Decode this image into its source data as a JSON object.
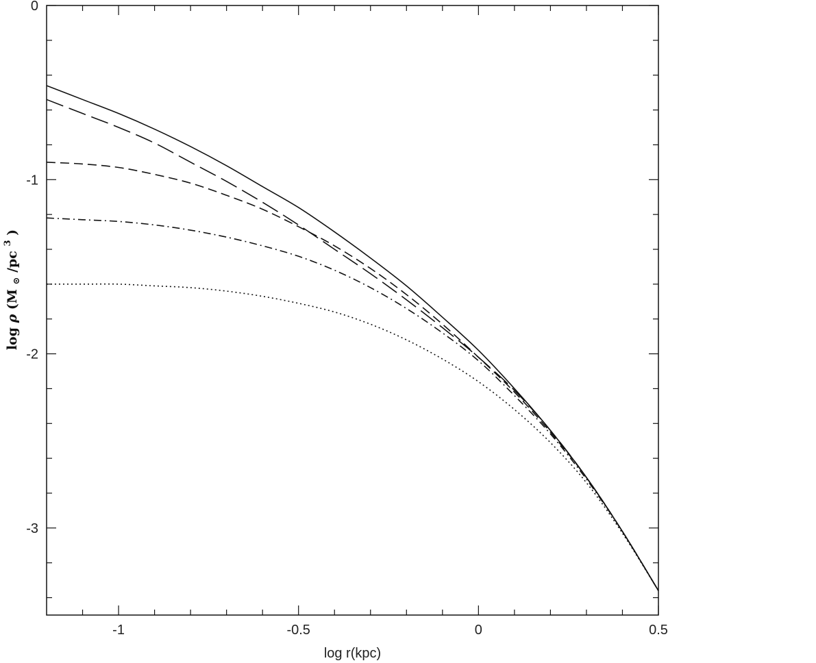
{
  "chart_data": {
    "type": "line",
    "title": "",
    "xlabel": "log r(kpc)",
    "ylabel": {
      "prefix": "log ",
      "symbol": "ρ",
      "unit_open": "  (M",
      "unit_sub": "⊙",
      "unit_mid": "/pc",
      "unit_sup": "3",
      "unit_close": ")"
    },
    "xlim": [
      -1.2,
      0.5
    ],
    "ylim": [
      -3.5,
      0
    ],
    "x_ticks": [
      -1,
      -0.5,
      0,
      0.5
    ],
    "x_tick_labels": [
      "-1",
      "-0.5",
      "0",
      "0.5"
    ],
    "x_minor_step": 0.1,
    "y_ticks": [
      0,
      -1,
      -2,
      -3
    ],
    "y_tick_labels": [
      "0",
      "-1",
      "-2",
      "-3"
    ],
    "y_minor_step": 0.2,
    "grid": false,
    "legend": "none",
    "series": [
      {
        "style": "solid",
        "x": [
          -1.2,
          -1.1,
          -1.0,
          -0.9,
          -0.8,
          -0.7,
          -0.6,
          -0.5,
          -0.4,
          -0.3,
          -0.2,
          -0.1,
          0.0,
          0.1,
          0.2,
          0.3,
          0.4,
          0.5
        ],
        "y": [
          -0.46,
          -0.54,
          -0.62,
          -0.71,
          -0.81,
          -0.92,
          -1.04,
          -1.16,
          -1.3,
          -1.45,
          -1.61,
          -1.79,
          -1.98,
          -2.2,
          -2.44,
          -2.71,
          -3.02,
          -3.36
        ]
      },
      {
        "style": "long-dash",
        "x": [
          -1.2,
          -1.1,
          -1.0,
          -0.9,
          -0.8,
          -0.7,
          -0.6,
          -0.5,
          -0.4,
          -0.3,
          -0.2,
          -0.1,
          0.0,
          0.1,
          0.2,
          0.3,
          0.4,
          0.5
        ],
        "y": [
          -0.54,
          -0.62,
          -0.7,
          -0.79,
          -0.9,
          -1.01,
          -1.13,
          -1.26,
          -1.4,
          -1.54,
          -1.69,
          -1.85,
          -2.02,
          -2.21,
          -2.44,
          -2.71,
          -3.02,
          -3.36
        ]
      },
      {
        "style": "dash",
        "x": [
          -1.2,
          -1.1,
          -1.0,
          -0.9,
          -0.8,
          -0.7,
          -0.6,
          -0.5,
          -0.4,
          -0.3,
          -0.2,
          -0.1,
          0.0,
          0.1,
          0.2,
          0.3,
          0.4,
          0.5
        ],
        "y": [
          -0.9,
          -0.91,
          -0.93,
          -0.97,
          -1.02,
          -1.09,
          -1.17,
          -1.27,
          -1.38,
          -1.51,
          -1.66,
          -1.83,
          -2.02,
          -2.22,
          -2.45,
          -2.71,
          -3.02,
          -3.36
        ]
      },
      {
        "style": "dash-dot",
        "x": [
          -1.2,
          -1.1,
          -1.0,
          -0.9,
          -0.8,
          -0.7,
          -0.6,
          -0.5,
          -0.4,
          -0.3,
          -0.2,
          -0.1,
          0.0,
          0.1,
          0.2,
          0.3,
          0.4,
          0.5
        ],
        "y": [
          -1.22,
          -1.23,
          -1.24,
          -1.26,
          -1.29,
          -1.33,
          -1.38,
          -1.44,
          -1.52,
          -1.62,
          -1.74,
          -1.88,
          -2.04,
          -2.24,
          -2.46,
          -2.72,
          -3.02,
          -3.36
        ]
      },
      {
        "style": "dot",
        "x": [
          -1.2,
          -1.1,
          -1.0,
          -0.9,
          -0.8,
          -0.7,
          -0.6,
          -0.5,
          -0.4,
          -0.3,
          -0.2,
          -0.1,
          0.0,
          0.1,
          0.2,
          0.3,
          0.4,
          0.5
        ],
        "y": [
          -1.6,
          -1.6,
          -1.6,
          -1.61,
          -1.62,
          -1.64,
          -1.67,
          -1.71,
          -1.76,
          -1.83,
          -1.92,
          -2.03,
          -2.16,
          -2.32,
          -2.51,
          -2.74,
          -3.03,
          -3.36
        ]
      }
    ]
  }
}
